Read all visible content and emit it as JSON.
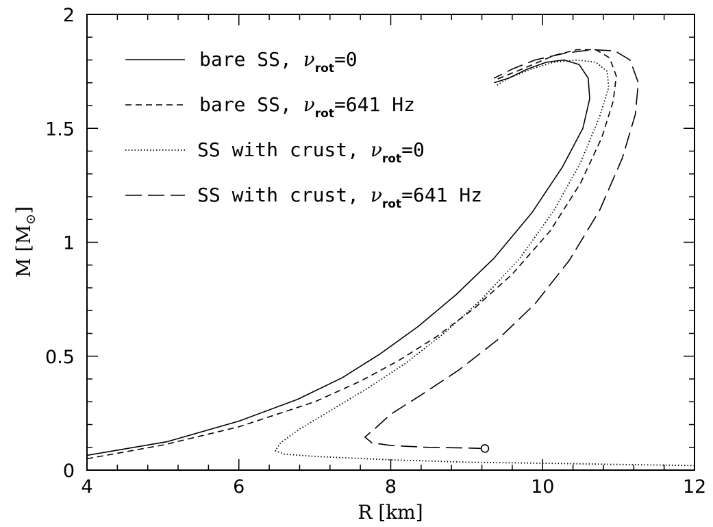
{
  "chart_data": {
    "type": "line",
    "xlabel": "R [km]",
    "ylabel_main": "M [M",
    "ylabel_sub": "⊙",
    "ylabel_close": "]",
    "xlim": [
      4,
      12
    ],
    "ylim": [
      0,
      2
    ],
    "x_ticks": [
      4,
      6,
      8,
      10,
      12
    ],
    "x_tick_labels": [
      "4",
      "6",
      "8",
      "10",
      "12"
    ],
    "y_ticks": [
      0,
      0.5,
      1,
      1.5,
      2
    ],
    "y_tick_labels": [
      "0",
      "0.5",
      "1",
      "1.5",
      "2"
    ],
    "legend_position": "top-left",
    "series": [
      {
        "name_pre": "bare SS, ",
        "name_nu": "ν",
        "name_sub": "rot",
        "name_post": "=0",
        "style": "solid",
        "points": [
          [
            4.0,
            0.065
          ],
          [
            5.06,
            0.125
          ],
          [
            6.0,
            0.215
          ],
          [
            6.77,
            0.31
          ],
          [
            7.36,
            0.405
          ],
          [
            7.86,
            0.51
          ],
          [
            8.36,
            0.63
          ],
          [
            8.86,
            0.77
          ],
          [
            9.36,
            0.93
          ],
          [
            9.86,
            1.13
          ],
          [
            10.26,
            1.33
          ],
          [
            10.53,
            1.5
          ],
          [
            10.62,
            1.63
          ],
          [
            10.6,
            1.72
          ],
          [
            10.48,
            1.78
          ],
          [
            10.28,
            1.8
          ],
          [
            10.05,
            1.79
          ],
          [
            9.8,
            1.76
          ],
          [
            9.55,
            1.72
          ],
          [
            9.36,
            1.7
          ]
        ]
      },
      {
        "name_pre": "bare SS, ",
        "name_nu": "ν",
        "name_sub": "rot",
        "name_post": "=641 Hz",
        "style": "short-dash",
        "points": [
          [
            4.0,
            0.05
          ],
          [
            5.0,
            0.11
          ],
          [
            6.0,
            0.19
          ],
          [
            7.0,
            0.3
          ],
          [
            7.6,
            0.39
          ],
          [
            8.1,
            0.48
          ],
          [
            8.6,
            0.585
          ],
          [
            9.1,
            0.71
          ],
          [
            9.6,
            0.86
          ],
          [
            10.1,
            1.05
          ],
          [
            10.5,
            1.26
          ],
          [
            10.78,
            1.46
          ],
          [
            10.93,
            1.62
          ],
          [
            10.97,
            1.73
          ],
          [
            10.88,
            1.81
          ],
          [
            10.7,
            1.845
          ],
          [
            10.45,
            1.845
          ],
          [
            10.15,
            1.82
          ],
          [
            9.8,
            1.77
          ],
          [
            9.36,
            1.71
          ]
        ]
      },
      {
        "name_pre": "SS with crust, ",
        "name_nu": "ν",
        "name_sub": "rot",
        "name_post": "=0",
        "style": "dotted",
        "points": [
          [
            12.0,
            0.02
          ],
          [
            11.0,
            0.025
          ],
          [
            10.0,
            0.03
          ],
          [
            9.0,
            0.035
          ],
          [
            8.0,
            0.045
          ],
          [
            7.0,
            0.06
          ],
          [
            6.6,
            0.07
          ],
          [
            6.48,
            0.085
          ],
          [
            6.55,
            0.12
          ],
          [
            6.8,
            0.18
          ],
          [
            7.2,
            0.26
          ],
          [
            7.7,
            0.36
          ],
          [
            8.2,
            0.47
          ],
          [
            8.7,
            0.6
          ],
          [
            9.2,
            0.75
          ],
          [
            9.7,
            0.93
          ],
          [
            10.15,
            1.14
          ],
          [
            10.5,
            1.35
          ],
          [
            10.75,
            1.55
          ],
          [
            10.87,
            1.68
          ],
          [
            10.85,
            1.75
          ],
          [
            10.7,
            1.79
          ],
          [
            10.45,
            1.8
          ],
          [
            10.15,
            1.79
          ],
          [
            9.85,
            1.76
          ],
          [
            9.55,
            1.72
          ],
          [
            9.4,
            1.69
          ]
        ]
      },
      {
        "name_pre": "SS with crust, ",
        "name_nu": "ν",
        "name_sub": "rot",
        "name_post": "=641 Hz",
        "style": "long-dash",
        "marker_end": [
          9.24,
          0.095
        ],
        "points": [
          [
            9.24,
            0.095
          ],
          [
            9.0,
            0.097
          ],
          [
            8.5,
            0.1
          ],
          [
            8.0,
            0.108
          ],
          [
            7.75,
            0.12
          ],
          [
            7.66,
            0.145
          ],
          [
            7.8,
            0.185
          ],
          [
            8.0,
            0.245
          ],
          [
            8.4,
            0.33
          ],
          [
            8.9,
            0.44
          ],
          [
            9.4,
            0.57
          ],
          [
            9.9,
            0.73
          ],
          [
            10.35,
            0.92
          ],
          [
            10.75,
            1.14
          ],
          [
            11.05,
            1.37
          ],
          [
            11.22,
            1.56
          ],
          [
            11.26,
            1.7
          ],
          [
            11.15,
            1.8
          ],
          [
            10.95,
            1.84
          ],
          [
            10.65,
            1.845
          ],
          [
            10.3,
            1.83
          ],
          [
            9.9,
            1.8
          ],
          [
            9.6,
            1.76
          ],
          [
            9.36,
            1.72
          ]
        ]
      }
    ]
  }
}
